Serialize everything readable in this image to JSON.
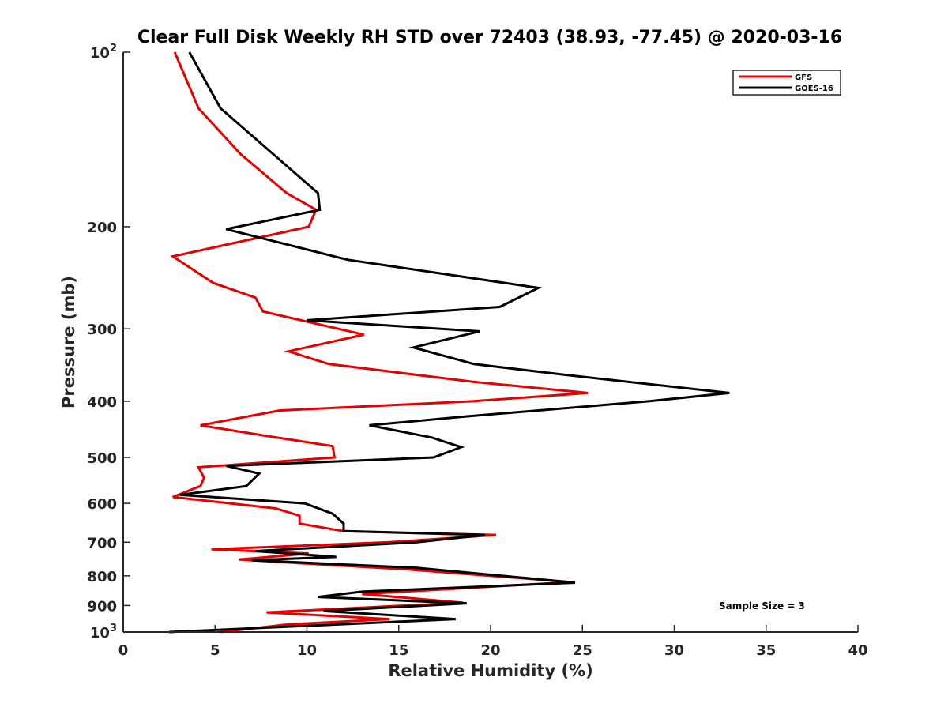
{
  "chart_data": {
    "type": "line",
    "title": "Clear Full Disk Weekly RH STD over 72403 (38.93, -77.45) @ 2020-03-16",
    "xlabel": "Relative Humidity (%)",
    "ylabel": "Pressure (mb)",
    "xlim": [
      0,
      40
    ],
    "ylim": [
      100,
      1000
    ],
    "y_scale": "log",
    "y_reversed": true,
    "x_ticks": [
      {
        "value": 0,
        "label": "0"
      },
      {
        "value": 5,
        "label": "5"
      },
      {
        "value": 10,
        "label": "10"
      },
      {
        "value": 15,
        "label": "15"
      },
      {
        "value": 20,
        "label": "20"
      },
      {
        "value": 25,
        "label": "25"
      },
      {
        "value": 30,
        "label": "30"
      },
      {
        "value": 35,
        "label": "35"
      },
      {
        "value": 40,
        "label": "40"
      }
    ],
    "y_ticks": [
      {
        "value": 100,
        "base": "10",
        "exp": "2"
      },
      {
        "value": 200,
        "label": "200"
      },
      {
        "value": 300,
        "label": "300"
      },
      {
        "value": 400,
        "label": "400"
      },
      {
        "value": 500,
        "label": "500"
      },
      {
        "value": 600,
        "label": "600"
      },
      {
        "value": 700,
        "label": "700"
      },
      {
        "value": 800,
        "label": "800"
      },
      {
        "value": 900,
        "label": "900"
      },
      {
        "value": 1000,
        "base": "10",
        "exp": "3"
      }
    ],
    "legend_position": "top-right",
    "series": [
      {
        "name": "GFS",
        "color": "#e60000",
        "points": [
          [
            2.8,
            100
          ],
          [
            4.1,
            125
          ],
          [
            6.4,
            150
          ],
          [
            8.9,
            175
          ],
          [
            10.5,
            187
          ],
          [
            10.1,
            200
          ],
          [
            2.7,
            225
          ],
          [
            4.9,
            250
          ],
          [
            7.2,
            265
          ],
          [
            7.6,
            280
          ],
          [
            13.1,
            307
          ],
          [
            9.0,
            328
          ],
          [
            11.2,
            345
          ],
          [
            19.0,
            370
          ],
          [
            25.3,
            387
          ],
          [
            19.0,
            400
          ],
          [
            8.5,
            415
          ],
          [
            4.2,
            440
          ],
          [
            8.0,
            460
          ],
          [
            11.4,
            478
          ],
          [
            11.5,
            500
          ],
          [
            4.1,
            520
          ],
          [
            4.4,
            542
          ],
          [
            4.2,
            560
          ],
          [
            2.7,
            585
          ],
          [
            8.3,
            612
          ],
          [
            9.6,
            630
          ],
          [
            9.6,
            650
          ],
          [
            12.0,
            670
          ],
          [
            20.3,
            680
          ],
          [
            14.5,
            700
          ],
          [
            4.8,
            720
          ],
          [
            10.1,
            732
          ],
          [
            6.3,
            750
          ],
          [
            15.5,
            780
          ],
          [
            24.4,
            820
          ],
          [
            13.0,
            860
          ],
          [
            18.5,
            890
          ],
          [
            7.8,
            925
          ],
          [
            14.5,
            950
          ],
          [
            9.0,
            970
          ],
          [
            5.3,
            1000
          ]
        ]
      },
      {
        "name": "GOES-16",
        "color": "#000000",
        "points": [
          [
            3.6,
            100
          ],
          [
            5.3,
            125
          ],
          [
            10.6,
            175
          ],
          [
            10.7,
            187
          ],
          [
            5.6,
            202
          ],
          [
            12.2,
            228
          ],
          [
            22.6,
            255
          ],
          [
            20.5,
            275
          ],
          [
            10.0,
            290
          ],
          [
            19.4,
            303
          ],
          [
            15.8,
            323
          ],
          [
            19.1,
            345
          ],
          [
            24.0,
            360
          ],
          [
            33.0,
            387
          ],
          [
            28.6,
            400
          ],
          [
            18.6,
            425
          ],
          [
            13.4,
            440
          ],
          [
            16.8,
            462
          ],
          [
            18.4,
            480
          ],
          [
            16.9,
            500
          ],
          [
            5.6,
            517
          ],
          [
            7.4,
            533
          ],
          [
            6.7,
            560
          ],
          [
            3.1,
            580
          ],
          [
            9.9,
            600
          ],
          [
            11.4,
            625
          ],
          [
            12.0,
            650
          ],
          [
            12.0,
            670
          ],
          [
            19.7,
            680
          ],
          [
            16.0,
            700
          ],
          [
            7.2,
            725
          ],
          [
            11.6,
            742
          ],
          [
            7.0,
            752
          ],
          [
            16.0,
            775
          ],
          [
            24.6,
            822
          ],
          [
            13.0,
            852
          ],
          [
            10.6,
            870
          ],
          [
            18.7,
            892
          ],
          [
            10.9,
            920
          ],
          [
            18.1,
            950
          ],
          [
            2.5,
            1000
          ]
        ]
      }
    ],
    "annotation": "Sample Size = 3"
  }
}
